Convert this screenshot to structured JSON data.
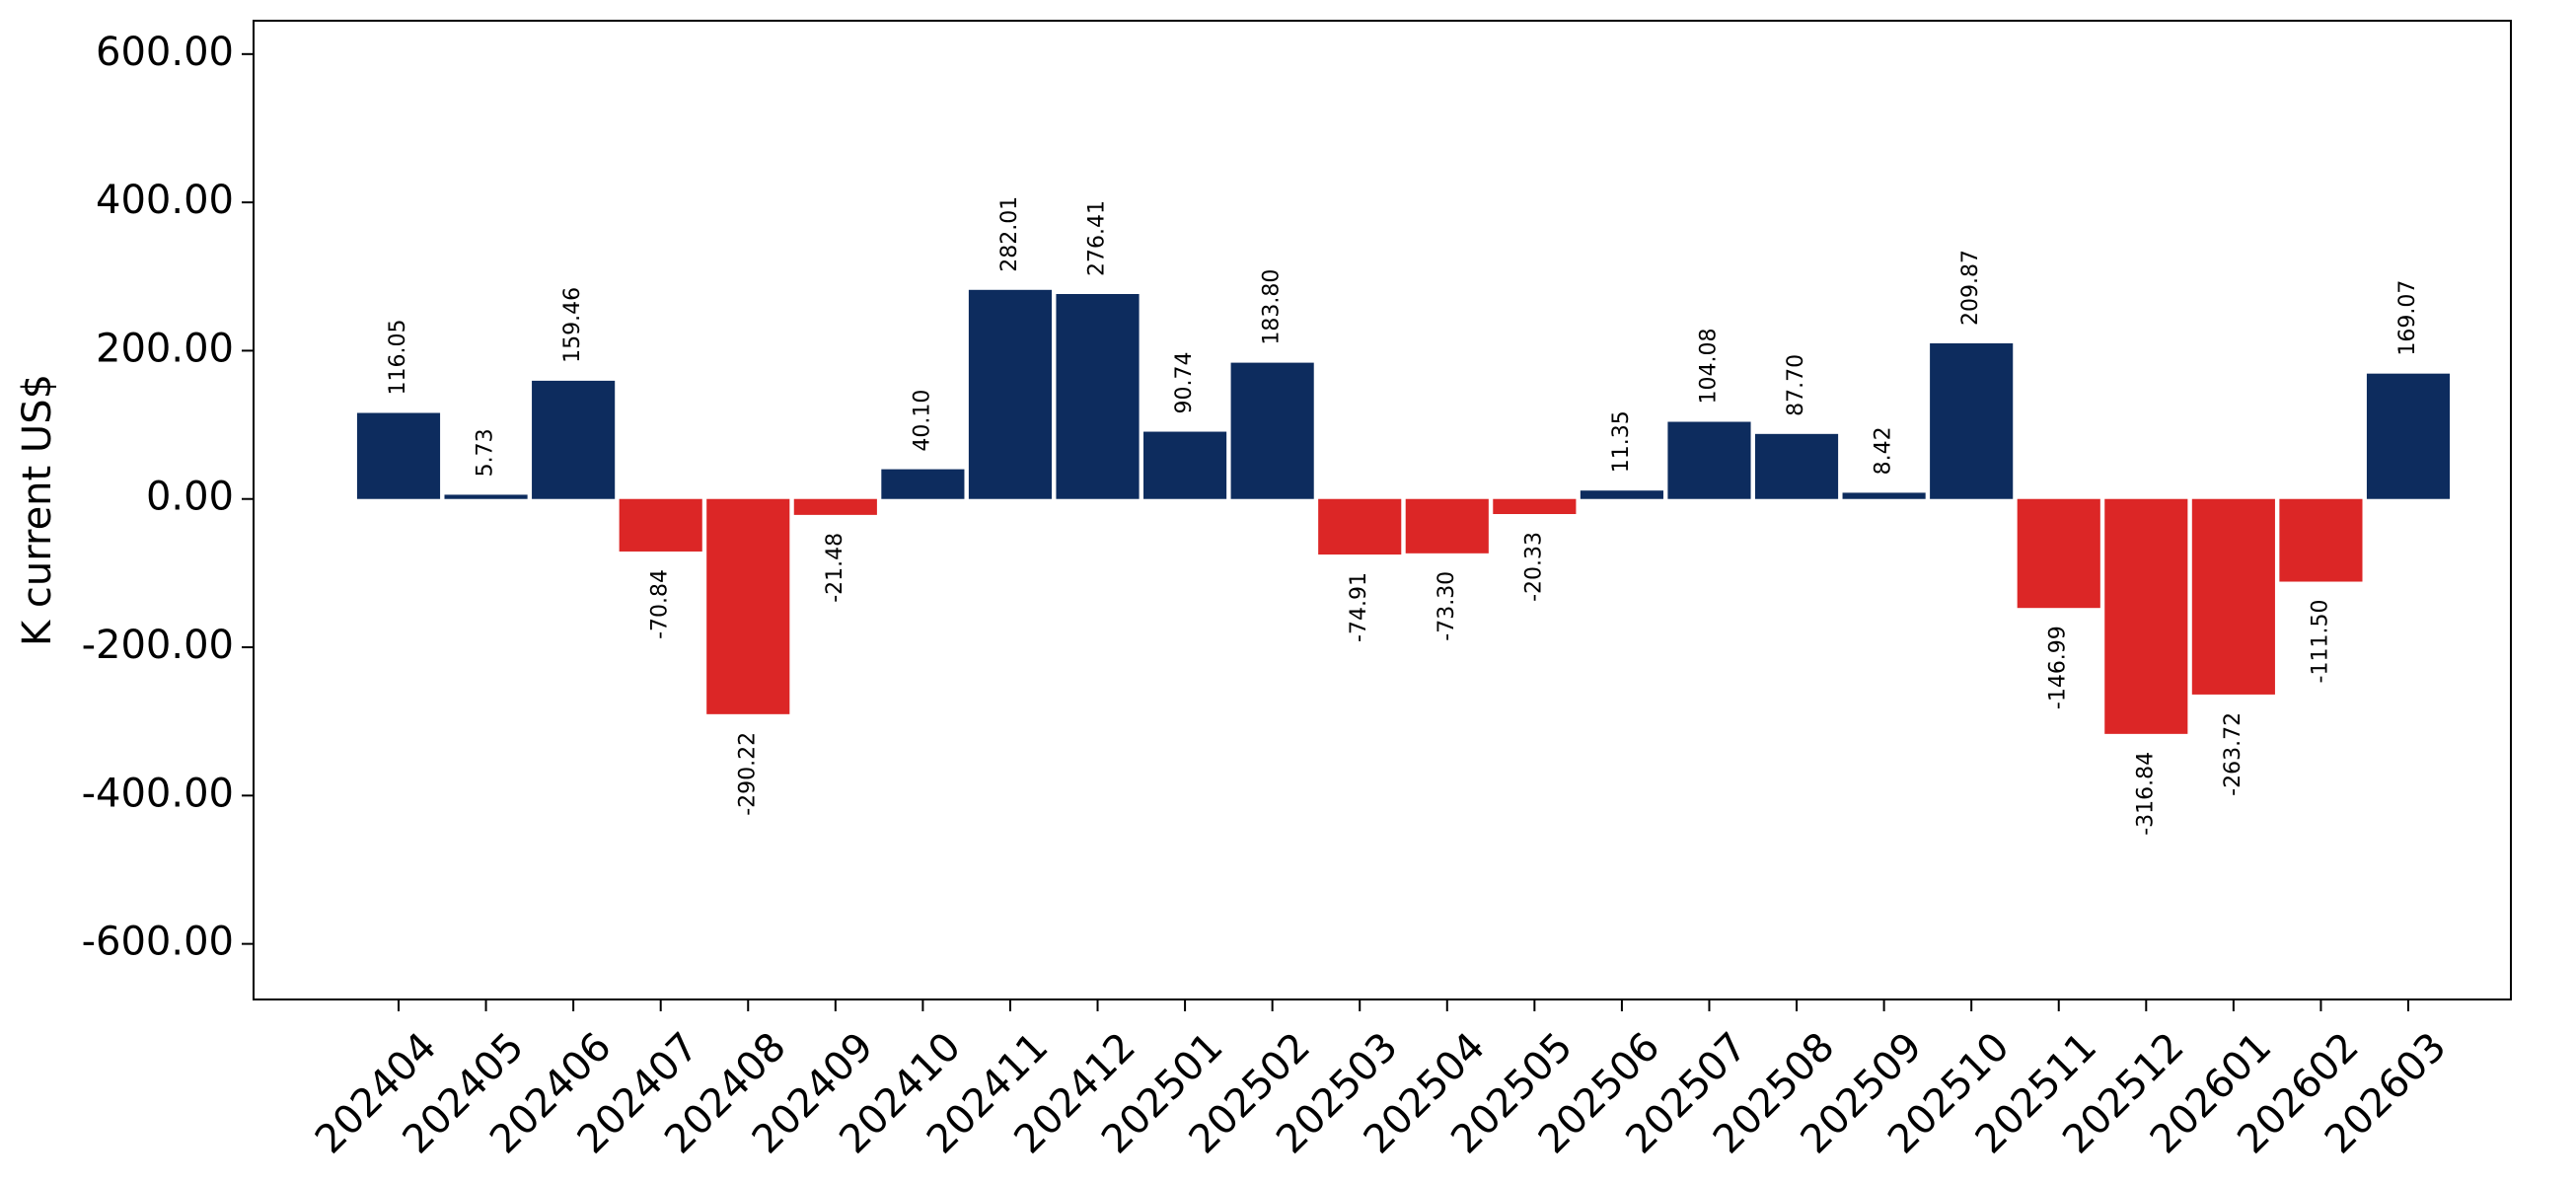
{
  "chart_data": {
    "type": "bar",
    "ylabel": "K current US$",
    "xlabel": "",
    "ylim": [
      -675,
      645
    ],
    "yticks": [
      -600,
      -400,
      -200,
      0,
      200,
      400,
      600
    ],
    "ytick_labels": [
      "-600.00",
      "-400.00",
      "-200.00",
      "0.00",
      "200.00",
      "400.00",
      "600.00"
    ],
    "categories": [
      "202404",
      "202405",
      "202406",
      "202407",
      "202408",
      "202409",
      "202410",
      "202411",
      "202412",
      "202501",
      "202502",
      "202503",
      "202504",
      "202505",
      "202506",
      "202507",
      "202508",
      "202509",
      "202510",
      "202511",
      "202512",
      "202601",
      "202602",
      "202603"
    ],
    "values": [
      116.05,
      5.73,
      159.46,
      -70.84,
      -290.22,
      -21.48,
      40.1,
      282.01,
      276.41,
      90.74,
      183.8,
      -74.91,
      -73.3,
      -20.33,
      11.35,
      104.08,
      87.7,
      8.42,
      209.87,
      -146.99,
      -316.84,
      -263.72,
      -111.5,
      169.07
    ],
    "value_labels": [
      "116.05",
      "5.73",
      "159.46",
      "-70.84",
      "-290.22",
      "-21.48",
      "40.10",
      "282.01",
      "276.41",
      "90.74",
      "183.80",
      "-74.91",
      "-73.30",
      "-20.33",
      "11.35",
      "104.08",
      "87.70",
      "8.42",
      "209.87",
      "-146.99",
      "-316.84",
      "-263.72",
      "-111.50",
      "169.07"
    ],
    "colors": {
      "positive": "#0d2c5e",
      "negative": "#dc2626",
      "axis": "#000000"
    },
    "grid": false,
    "legend": false
  }
}
